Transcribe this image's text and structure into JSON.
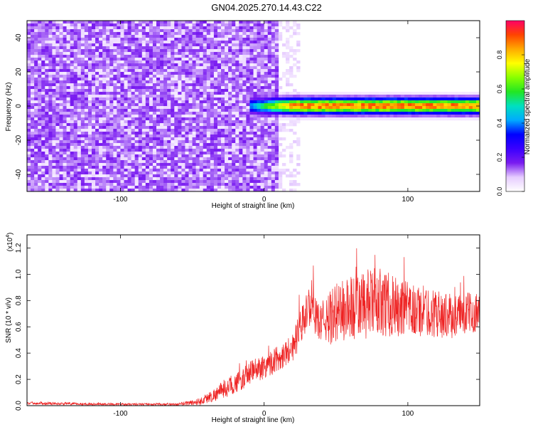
{
  "title": "GN04.2025.270.14.43.C22",
  "chart_data": [
    {
      "type": "heatmap",
      "xlabel": "Height of straight line (km)",
      "ylabel": "Frequency (Hz)",
      "xlim": [
        -165,
        150
      ],
      "ylim": [
        -50,
        50
      ],
      "x_ticks": [
        -100,
        0,
        100
      ],
      "y_ticks": [
        -40,
        -20,
        0,
        20,
        40
      ],
      "colorbar": {
        "label": "Normalized spectral amplitude",
        "range": [
          0,
          1
        ],
        "ticks": [
          0.0,
          0.2,
          0.4,
          0.6,
          0.8
        ],
        "colors": [
          "#ffffff",
          "#e6ccff",
          "#7a1cf0",
          "#3a00ff",
          "#0000ff",
          "#00aaff",
          "#00e0c0",
          "#22e622",
          "#88ff00",
          "#ffff00",
          "#ffaa00",
          "#ff4400",
          "#ff0066"
        ]
      },
      "noise_region_x": [
        -165,
        10
      ],
      "fade_region_x": [
        10,
        25
      ],
      "signal_band": {
        "x_start": -10,
        "x_end": 150,
        "center_frequency": 0,
        "halfwidth_hz": 3,
        "peak_amplitude": 0.95
      }
    },
    {
      "type": "line",
      "xlabel": "Height of straight line (km)",
      "ylabel": "SNR (10 * v/v)",
      "y_multiplier": "(x10",
      "y_multiplier_exp": "4",
      "y_multiplier_close": ")",
      "xlim": [
        -165,
        150
      ],
      "ylim": [
        0,
        1.3
      ],
      "x_ticks": [
        -100,
        0,
        100
      ],
      "y_ticks": [
        0.0,
        0.2,
        0.4,
        0.6,
        0.8,
        1.0,
        1.2
      ],
      "color": "#ee2222",
      "envelope": {
        "x": [
          -165,
          -140,
          -100,
          -60,
          -45,
          -35,
          -25,
          -15,
          -10,
          0,
          10,
          20,
          25,
          30,
          33,
          36,
          40,
          45,
          50,
          60,
          70,
          80,
          90,
          100,
          110,
          120,
          130,
          140,
          150
        ],
        "mean": [
          0.02,
          0.015,
          0.01,
          0.01,
          0.03,
          0.08,
          0.14,
          0.2,
          0.25,
          0.3,
          0.36,
          0.45,
          0.58,
          0.72,
          0.8,
          0.66,
          0.64,
          0.66,
          0.7,
          0.74,
          0.76,
          0.8,
          0.75,
          0.72,
          0.72,
          0.7,
          0.68,
          0.7,
          0.72
        ],
        "spread": [
          0.01,
          0.01,
          0.008,
          0.01,
          0.03,
          0.05,
          0.07,
          0.08,
          0.09,
          0.1,
          0.1,
          0.11,
          0.14,
          0.16,
          0.16,
          0.14,
          0.15,
          0.2,
          0.24,
          0.26,
          0.27,
          0.26,
          0.24,
          0.22,
          0.2,
          0.18,
          0.17,
          0.16,
          0.15
        ]
      }
    }
  ]
}
